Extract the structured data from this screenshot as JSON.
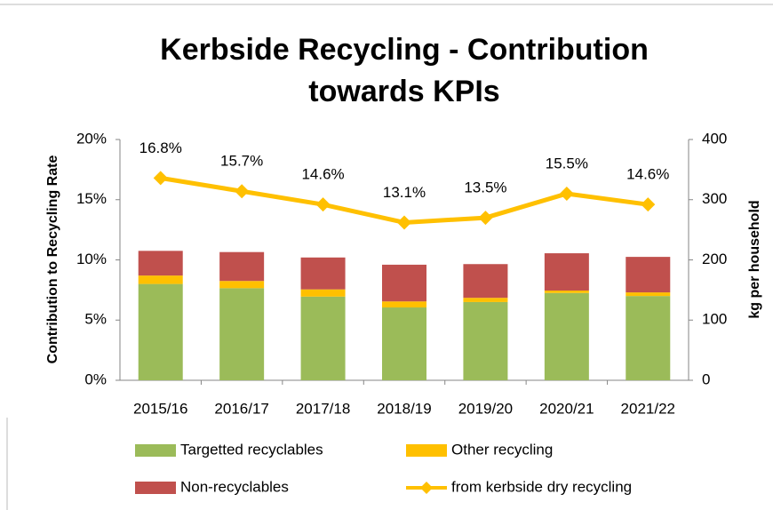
{
  "chart_data": {
    "type": "bar_line",
    "title": [
      "Kerbside Recycling - Contribution",
      "towards KPIs"
    ],
    "ylabel": "Contribution to Recycling Rate",
    "y2label": "kg per household",
    "categories": [
      "2015/16",
      "2016/17",
      "2017/18",
      "2018/19",
      "2019/20",
      "2020/21",
      "2021/22"
    ],
    "series": [
      {
        "name": "Targetted recyclables",
        "color": "#9bbb59",
        "kind": "bar",
        "axis": "y2",
        "values": [
          160,
          153,
          139,
          121,
          130,
          145,
          140
        ]
      },
      {
        "name": "Other recycling",
        "color": "#ffc000",
        "kind": "bar",
        "axis": "y2",
        "values": [
          14,
          12,
          12,
          10,
          7,
          4,
          6
        ]
      },
      {
        "name": "Non-recyclables",
        "color": "#c0504d",
        "kind": "bar",
        "axis": "y2",
        "values": [
          41,
          48,
          53,
          61,
          56,
          62,
          59
        ]
      },
      {
        "name": "from kerbside dry recycling",
        "color": "#ffc000",
        "kind": "line",
        "values": [
          16.8,
          15.7,
          14.6,
          13.1,
          13.5,
          15.5,
          14.6
        ],
        "value_labels": [
          "16.8%",
          "15.7%",
          "14.6%",
          "13.1%",
          "13.5%",
          "15.5%",
          "14.6%"
        ]
      }
    ],
    "ylim": [
      0,
      20
    ],
    "yticks": [
      {
        "value": 0,
        "label": "0%"
      },
      {
        "value": 5,
        "label": "5%"
      },
      {
        "value": 10,
        "label": "10%"
      },
      {
        "value": 15,
        "label": "15%"
      },
      {
        "value": 20,
        "label": "20%"
      }
    ],
    "y2lim": [
      0,
      400
    ],
    "y2ticks": [
      0,
      100,
      200,
      300,
      400
    ],
    "stacked": true,
    "grid": false,
    "legend": "bottom"
  }
}
